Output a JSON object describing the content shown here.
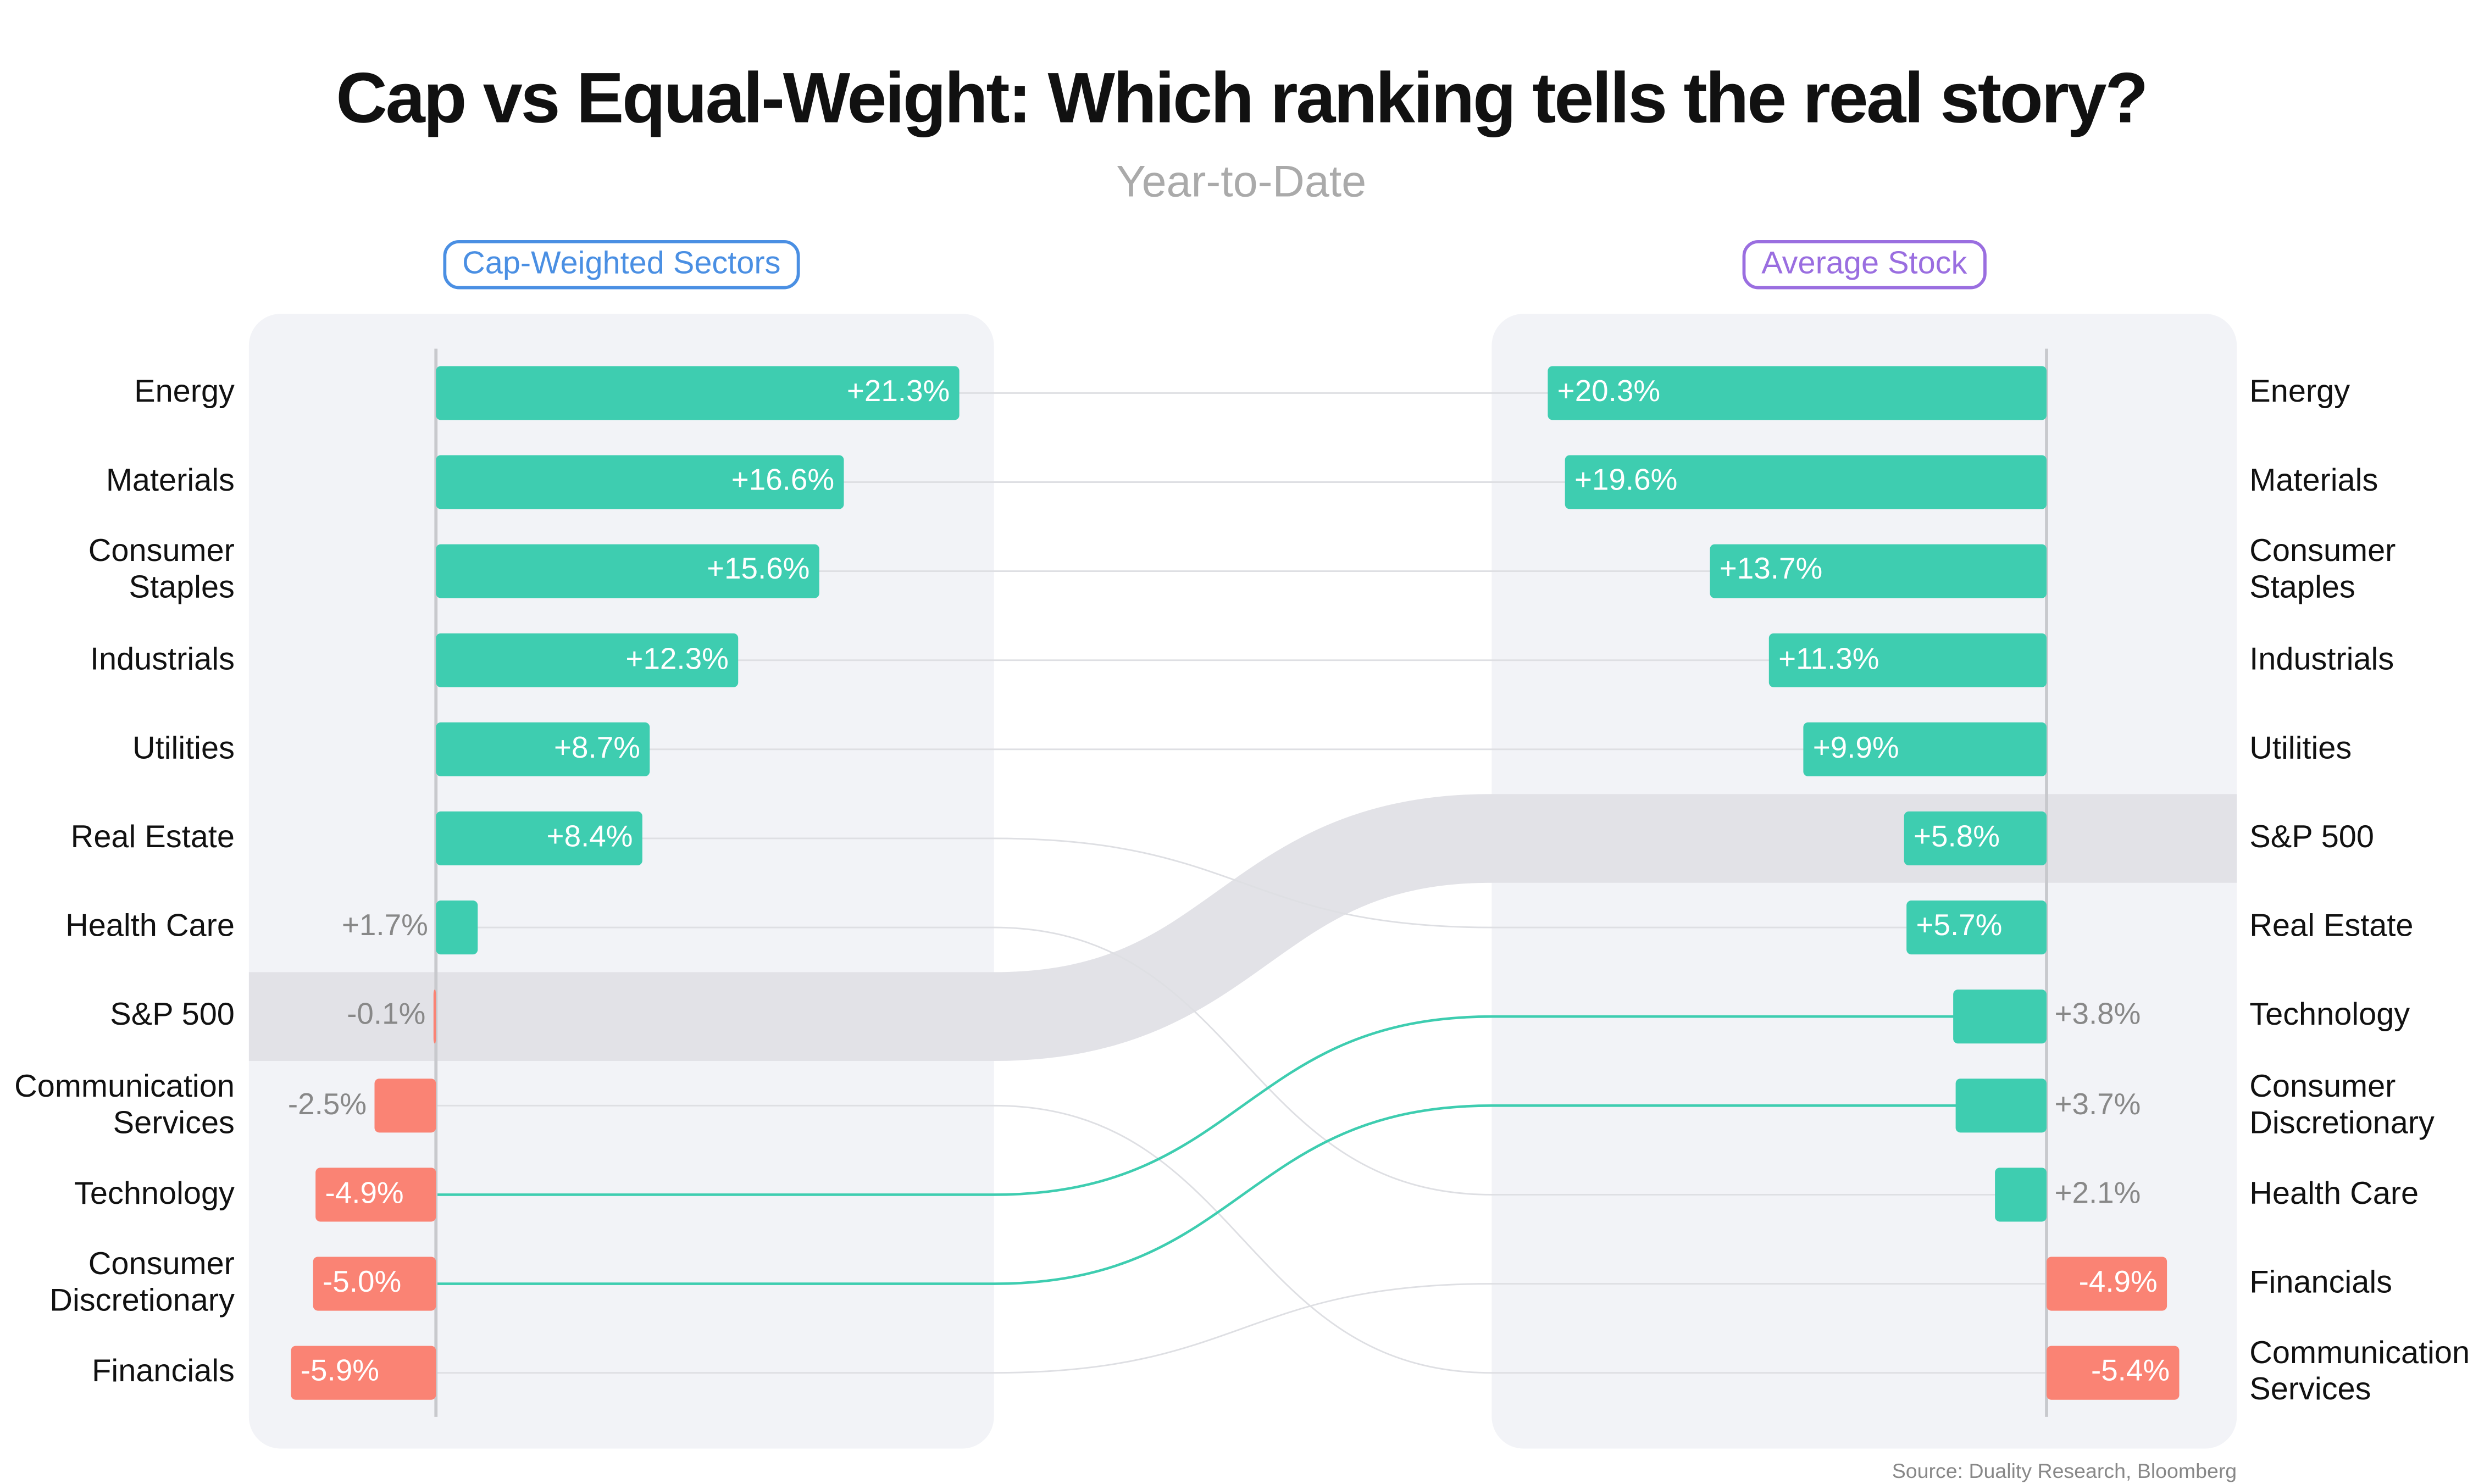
{
  "chart_data": {
    "type": "ranking-bar",
    "title": "Cap vs Equal-Weight: Which ranking tells the real story?",
    "subtitle": "Year-to-Date",
    "source": "Source: Duality Research, Bloomberg",
    "positive_color": "#3ecdb0",
    "negative_color": "#fa8374",
    "connector_color": "#dedfe3",
    "emphasis_color": "#3ecdb0",
    "highlight": "S&P 500",
    "highlight_color": "#e2e2e7",
    "emphasized": [
      "Technology",
      "Consumer Discretionary"
    ],
    "panels": [
      {
        "title": "Cap-Weighted Sectors",
        "title_color": "#4a8fe3",
        "categories": [
          "Energy",
          "Materials",
          "Consumer Staples",
          "Industrials",
          "Utilities",
          "Real Estate",
          "Health Care",
          "S&P 500",
          "Communication Services",
          "Technology",
          "Consumer Discretionary",
          "Financials"
        ],
        "values": [
          21.3,
          16.6,
          15.6,
          12.3,
          8.7,
          8.4,
          1.7,
          -0.1,
          -2.5,
          -4.9,
          -5.0,
          -5.9
        ],
        "value_labels": [
          "+21.3%",
          "+16.6%",
          "+15.6%",
          "+12.3%",
          "+8.7%",
          "+8.4%",
          "+1.7%",
          "-0.1%",
          "-2.5%",
          "-4.9%",
          "-5.0%",
          "-5.9%"
        ]
      },
      {
        "title": "Average Stock",
        "title_color": "#9a6ee0",
        "categories": [
          "Energy",
          "Materials",
          "Consumer Staples",
          "Industrials",
          "Utilities",
          "S&P 500",
          "Real Estate",
          "Technology",
          "Consumer Discretionary",
          "Health Care",
          "Financials",
          "Communication Services"
        ],
        "values": [
          20.3,
          19.6,
          13.7,
          11.3,
          9.9,
          5.8,
          5.7,
          3.8,
          3.7,
          2.1,
          -4.9,
          -5.4
        ],
        "value_labels": [
          "+20.3%",
          "+19.6%",
          "+13.7%",
          "+11.3%",
          "+9.9%",
          "+5.8%",
          "+5.7%",
          "+3.8%",
          "+3.7%",
          "+2.1%",
          "-4.9%",
          "-5.4%"
        ]
      }
    ]
  }
}
